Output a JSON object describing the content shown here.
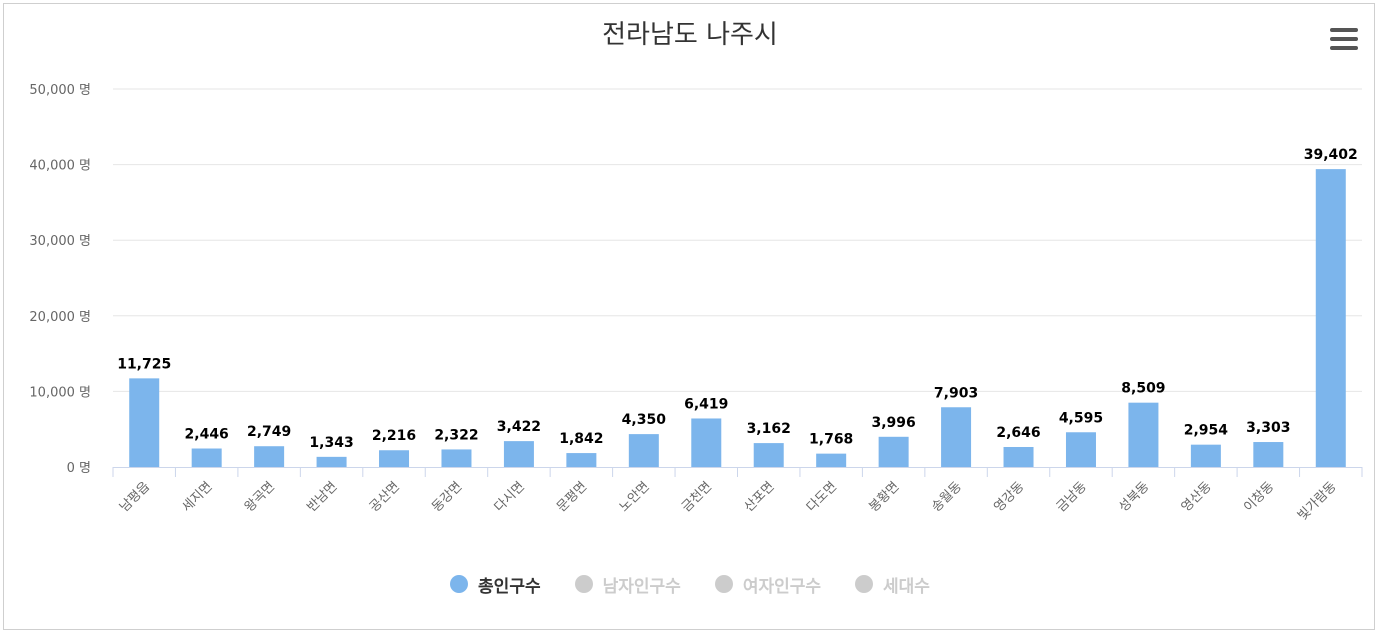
{
  "chart_data": {
    "type": "bar",
    "title": "전라남도 나주시",
    "categories": [
      "남평읍",
      "세지면",
      "왕곡면",
      "반남면",
      "공산면",
      "동강면",
      "다시면",
      "문평면",
      "노안면",
      "금천면",
      "산포면",
      "다도면",
      "봉황면",
      "송월동",
      "영강동",
      "금남동",
      "성북동",
      "영산동",
      "이창동",
      "빛가람동"
    ],
    "series": [
      {
        "name": "총인구수",
        "values": [
          11725,
          2446,
          2749,
          1343,
          2216,
          2322,
          3422,
          1842,
          4350,
          6419,
          3162,
          1768,
          3996,
          7903,
          2646,
          4595,
          8509,
          2954,
          3303,
          39402
        ],
        "labels": [
          "11,725",
          "2,446",
          "2,749",
          "1,343",
          "2,216",
          "2,322",
          "3,422",
          "1,842",
          "4,350",
          "6,419",
          "3,162",
          "1,768",
          "3,996",
          "7,903",
          "2,646",
          "4,595",
          "8,509",
          "2,954",
          "3,303",
          "39,402"
        ]
      }
    ],
    "ylim": [
      0,
      50000
    ],
    "yticks": [
      {
        "value": 0,
        "label": "0 명"
      },
      {
        "value": 10000,
        "label": "10,000 명"
      },
      {
        "value": 20000,
        "label": "20,000 명"
      },
      {
        "value": 30000,
        "label": "30,000 명"
      },
      {
        "value": 40000,
        "label": "40,000 명"
      },
      {
        "value": 50000,
        "label": "50,000 명"
      }
    ],
    "grid": true,
    "legend_position": "bottom",
    "bar_color": "#7cb5ec"
  },
  "legend": {
    "items": [
      {
        "label": "총인구수",
        "color": "#7cb5ec",
        "text_color": "#333333"
      },
      {
        "label": "남자인구수",
        "color": "#cccccc",
        "text_color": "#cccccc"
      },
      {
        "label": "여자인구수",
        "color": "#cccccc",
        "text_color": "#cccccc"
      },
      {
        "label": "세대수",
        "color": "#cccccc",
        "text_color": "#cccccc"
      }
    ]
  },
  "menu": {
    "icon": "hamburger-menu-icon"
  }
}
